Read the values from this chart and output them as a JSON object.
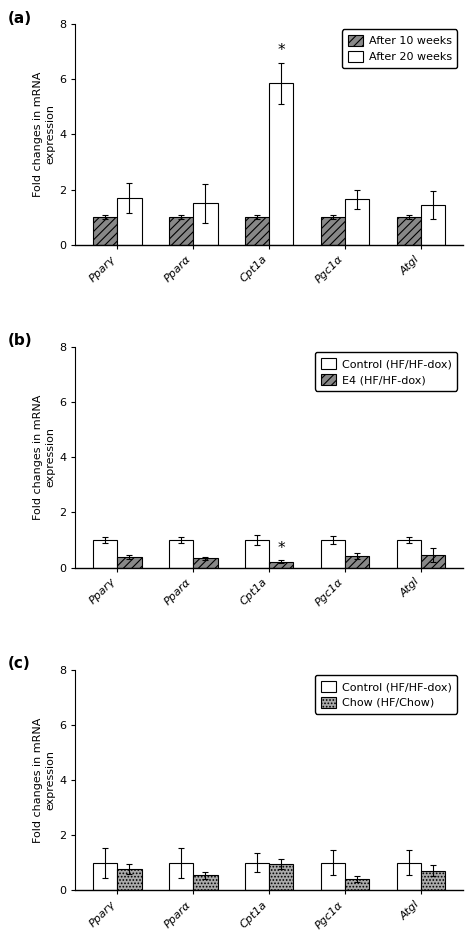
{
  "categories": [
    "Pparγ",
    "Pparα",
    "Cpt1a",
    "Pgc1α",
    "Atgl"
  ],
  "panel_a": {
    "label": "(a)",
    "bar1_values": [
      1.0,
      1.0,
      1.0,
      1.0,
      1.0
    ],
    "bar2_values": [
      1.7,
      1.5,
      5.85,
      1.65,
      1.45
    ],
    "bar1_errors": [
      0.08,
      0.08,
      0.08,
      0.08,
      0.08
    ],
    "bar2_errors": [
      0.55,
      0.7,
      0.75,
      0.35,
      0.5
    ],
    "legend1": "After 10 weeks",
    "legend2": "After 20 weeks",
    "bar1_hatch": "////",
    "bar2_hatch": "",
    "bar1_facecolor": "#888888",
    "bar2_facecolor": "white",
    "significance": [
      false,
      false,
      true,
      false,
      false
    ],
    "sig_bar": 2,
    "sig_on_bar2": true,
    "ylim": [
      0,
      8
    ],
    "yticks": [
      0,
      2,
      4,
      6,
      8
    ]
  },
  "panel_b": {
    "label": "(b)",
    "bar1_values": [
      1.0,
      1.0,
      1.0,
      1.0,
      1.0
    ],
    "bar2_values": [
      0.38,
      0.33,
      0.22,
      0.42,
      0.45
    ],
    "bar1_errors": [
      0.1,
      0.1,
      0.18,
      0.15,
      0.12
    ],
    "bar2_errors": [
      0.08,
      0.06,
      0.06,
      0.1,
      0.25
    ],
    "legend1": "Control (HF/HF-dox)",
    "legend2": "E4 (HF/HF-dox)",
    "bar1_hatch": "",
    "bar2_hatch": "////",
    "bar1_facecolor": "white",
    "bar2_facecolor": "#888888",
    "significance": [
      false,
      false,
      true,
      false,
      false
    ],
    "sig_bar": 2,
    "sig_on_bar2": true,
    "ylim": [
      0,
      8
    ],
    "yticks": [
      0,
      2,
      4,
      6,
      8
    ]
  },
  "panel_c": {
    "label": "(c)",
    "bar1_values": [
      1.0,
      1.0,
      1.0,
      1.0,
      1.0
    ],
    "bar2_values": [
      0.78,
      0.55,
      0.95,
      0.42,
      0.72
    ],
    "bar1_errors": [
      0.55,
      0.55,
      0.35,
      0.45,
      0.45
    ],
    "bar2_errors": [
      0.18,
      0.12,
      0.18,
      0.1,
      0.2
    ],
    "legend1": "Control (HF/HF-dox)",
    "legend2": "Chow (HF/Chow)",
    "bar1_hatch": "",
    "bar2_hatch": ".....",
    "bar1_facecolor": "white",
    "bar2_facecolor": "#aaaaaa",
    "significance": [
      false,
      false,
      false,
      false,
      false
    ],
    "sig_bar": -1,
    "sig_on_bar2": false,
    "ylim": [
      0,
      8
    ],
    "yticks": [
      0,
      2,
      4,
      6,
      8
    ]
  },
  "ylabel": "Fold changes in mRNA\nexpression",
  "bar_width": 0.32,
  "edgecolor": "black",
  "fontsize_label": 8,
  "fontsize_tick": 8,
  "fontsize_legend": 8,
  "fontsize_panel": 11,
  "fontsize_sig": 11
}
